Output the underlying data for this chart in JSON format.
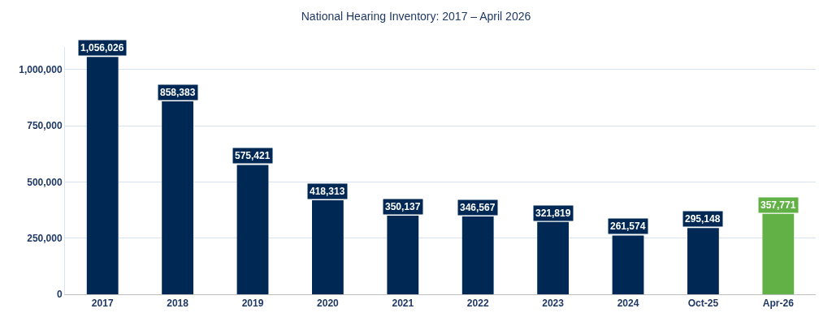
{
  "chart_data": {
    "type": "bar",
    "title": "National Hearing Inventory: 2017 – April 2026",
    "categories": [
      "2017",
      "2018",
      "2019",
      "2020",
      "2021",
      "2022",
      "2023",
      "2024",
      "Oct-25",
      "Apr-26"
    ],
    "values": [
      1056026,
      858383,
      575421,
      418313,
      350137,
      346567,
      321819,
      261574,
      295148,
      357771
    ],
    "colors": [
      "#002855",
      "#002855",
      "#002855",
      "#002855",
      "#002855",
      "#002855",
      "#002855",
      "#002855",
      "#002855",
      "#62b146"
    ],
    "ylim": [
      0,
      1100000
    ],
    "yticks": [
      {
        "value": 0,
        "label": "0"
      },
      {
        "value": 250000,
        "label": "250,000"
      },
      {
        "value": 500000,
        "label": "500,000"
      },
      {
        "value": 750000,
        "label": "750,000"
      },
      {
        "value": 1000000,
        "label": "1,000,000"
      }
    ],
    "value_labels": [
      "1,056,026",
      "858,383",
      "575,421",
      "418,313",
      "350,137",
      "346,567",
      "321,819",
      "261,574",
      "295,148",
      "357,771"
    ],
    "grid": "y"
  }
}
